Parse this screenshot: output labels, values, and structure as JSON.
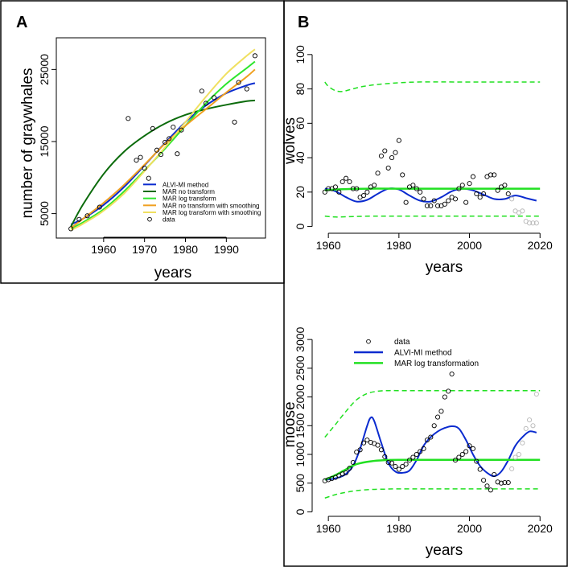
{
  "panels": {
    "A": {
      "label": "A"
    },
    "B": {
      "label": "B"
    }
  },
  "chart_data": [
    {
      "id": "graywhales",
      "type": "line",
      "panel": "A",
      "title": "",
      "xlabel": "years",
      "ylabel": "number of graywhales",
      "xlim": [
        1950,
        1998
      ],
      "ylim": [
        2500,
        28500
      ],
      "x_ticks": [
        1960,
        1970,
        1980,
        1990
      ],
      "y_ticks": [
        5000,
        15000,
        25000
      ],
      "legend_position": "bottom-right",
      "legend": [
        {
          "label": "ALVI-MI method",
          "color": "#0a2bcf",
          "style": "line"
        },
        {
          "label": "MAR no transform",
          "color": "#0b6b0b",
          "style": "line"
        },
        {
          "label": "MAR log transform",
          "color": "#2ee62e",
          "style": "line"
        },
        {
          "label": "MAR no transform with smoothing",
          "color": "#f0a020",
          "style": "line"
        },
        {
          "label": "MAR log transform with smoothing",
          "color": "#f0e060",
          "style": "line"
        },
        {
          "label": "data",
          "color": "#000000",
          "style": "point"
        }
      ],
      "series": [
        {
          "name": "ALVI-MI method",
          "color": "#0a2bcf",
          "width": 2,
          "x": [
            1952,
            1955,
            1960,
            1965,
            1970,
            1975,
            1980,
            1985,
            1990,
            1995,
            1997
          ],
          "y": [
            3500,
            4300,
            6200,
            8700,
            11700,
            14800,
            17700,
            20000,
            21700,
            22800,
            23100
          ]
        },
        {
          "name": "MAR no transform",
          "color": "#0b6b0b",
          "width": 2,
          "x": [
            1952,
            1955,
            1960,
            1965,
            1970,
            1975,
            1980,
            1985,
            1990,
            1995,
            1997
          ],
          "y": [
            3200,
            6300,
            10500,
            13600,
            15800,
            17500,
            18700,
            19500,
            20100,
            20600,
            20700
          ]
        },
        {
          "name": "MAR log transform",
          "color": "#2ee62e",
          "width": 2,
          "x": [
            1952,
            1955,
            1960,
            1965,
            1970,
            1975,
            1980,
            1985,
            1990,
            1995,
            1997
          ],
          "y": [
            2900,
            3800,
            5600,
            8100,
            11000,
            14000,
            17200,
            20300,
            23000,
            25200,
            26100
          ]
        },
        {
          "name": "MAR no transform with smoothing",
          "color": "#f0a020",
          "width": 2,
          "x": [
            1952,
            1955,
            1960,
            1965,
            1970,
            1975,
            1980,
            1985,
            1990,
            1995,
            1997
          ],
          "y": [
            3000,
            4300,
            6500,
            9000,
            11800,
            14700,
            17200,
            19500,
            21800,
            24000,
            25000
          ]
        },
        {
          "name": "MAR log transform with smoothing",
          "color": "#f0e060",
          "width": 2,
          "x": [
            1952,
            1955,
            1960,
            1965,
            1970,
            1975,
            1980,
            1985,
            1990,
            1995,
            1997
          ],
          "y": [
            2700,
            3600,
            5400,
            7800,
            10900,
            14200,
            17700,
            21200,
            24400,
            26900,
            27800
          ]
        }
      ],
      "points": {
        "name": "data",
        "x": [
          1952,
          1954,
          1956,
          1959,
          1966,
          1968,
          1969,
          1970,
          1971,
          1972,
          1973,
          1974,
          1975,
          1976,
          1977,
          1978,
          1979,
          1984,
          1985,
          1987,
          1992,
          1993,
          1995,
          1997
        ],
        "y": [
          2900,
          4200,
          4700,
          5900,
          18200,
          12400,
          12800,
          11300,
          9900,
          16800,
          13800,
          13200,
          14900,
          15400,
          17000,
          13300,
          16600,
          22000,
          20300,
          21100,
          17700,
          23200,
          22300,
          26900
        ]
      }
    },
    {
      "id": "wolves",
      "type": "line",
      "panel": "B",
      "title": "",
      "xlabel": "years",
      "ylabel": "wolves",
      "xlim": [
        1957,
        2022
      ],
      "ylim": [
        -3,
        106
      ],
      "x_ticks": [
        1960,
        1980,
        2000,
        2020
      ],
      "y_ticks": [
        0,
        20,
        40,
        60,
        80,
        100
      ],
      "series": [
        {
          "name": "ALVI-MI method",
          "color": "#0a2bcf",
          "width": 2,
          "dash": "",
          "x": [
            1959,
            1962,
            1965,
            1968,
            1971,
            1974,
            1977,
            1980,
            1983,
            1986,
            1989,
            1992,
            1995,
            1998,
            2001,
            2004,
            2007,
            2010,
            2013,
            2016,
            2019
          ],
          "y": [
            22,
            20.5,
            17,
            14.5,
            15.5,
            19,
            22,
            21.5,
            18,
            15,
            14.5,
            17,
            20.5,
            22,
            21,
            18.5,
            16,
            16,
            18,
            16.5,
            15
          ]
        },
        {
          "name": "MAR log transformation",
          "color": "#22e022",
          "width": 2.5,
          "dash": "",
          "x": [
            1959,
            1962,
            1966,
            1972,
            1980,
            2000,
            2020
          ],
          "y": [
            21,
            21.5,
            21.8,
            22,
            22,
            22,
            22
          ]
        },
        {
          "name": "MAR upper bound",
          "color": "#22e022",
          "width": 1.5,
          "dash": "6,4",
          "x": [
            1959,
            1960,
            1962,
            1964,
            1966,
            1970,
            1976,
            1985,
            2000,
            2020
          ],
          "y": [
            84,
            81.5,
            79,
            78.5,
            79.5,
            81.5,
            83,
            84,
            84,
            84
          ]
        },
        {
          "name": "MAR lower bound",
          "color": "#22e022",
          "width": 1.5,
          "dash": "6,4",
          "x": [
            1959,
            1962,
            1966,
            1972,
            1980,
            2000,
            2020
          ],
          "y": [
            6,
            5.5,
            5.7,
            6,
            6,
            6,
            6
          ]
        }
      ],
      "points": {
        "name": "data",
        "x": [
          1959,
          1960,
          1961,
          1962,
          1963,
          1964,
          1965,
          1966,
          1967,
          1968,
          1969,
          1970,
          1971,
          1972,
          1973,
          1974,
          1975,
          1976,
          1977,
          1978,
          1979,
          1980,
          1981,
          1982,
          1983,
          1984,
          1985,
          1986,
          1987,
          1988,
          1989,
          1990,
          1991,
          1992,
          1993,
          1994,
          1995,
          1996,
          1997,
          1998,
          1999,
          2000,
          2001,
          2002,
          2003,
          2004,
          2005,
          2006,
          2007,
          2008,
          2009,
          2010,
          2011
        ],
        "y": [
          20,
          22,
          22,
          23,
          20,
          26,
          28,
          26,
          22,
          22,
          17,
          18,
          20,
          23,
          24,
          31,
          41,
          44,
          34,
          40,
          43,
          50,
          30,
          14,
          23,
          24,
          22,
          20,
          16,
          12,
          12,
          15,
          12,
          12,
          13,
          15,
          17,
          16,
          22,
          24,
          14,
          25,
          29,
          19,
          17,
          19,
          29,
          30,
          30,
          21,
          23,
          24,
          19
        ]
      },
      "faint_points": {
        "name": "data recent",
        "x": [
          2012,
          2013,
          2014,
          2015,
          2016,
          2017,
          2018,
          2019
        ],
        "y": [
          16,
          9,
          8,
          9,
          3,
          2,
          2,
          2
        ]
      }
    },
    {
      "id": "moose",
      "type": "line",
      "panel": "B",
      "title": "",
      "xlabel": "years",
      "ylabel": "moose",
      "xlim": [
        1957,
        2022
      ],
      "ylim": [
        -50,
        3100
      ],
      "x_ticks": [
        1960,
        1980,
        2000,
        2020
      ],
      "y_ticks": [
        0,
        500,
        1000,
        1500,
        2000,
        2500,
        3000
      ],
      "legend_position": "top-left",
      "legend": [
        {
          "label": "data",
          "color": "#000000",
          "style": "point"
        },
        {
          "label": "ALVI-MI method",
          "color": "#0a2bcf",
          "style": "line"
        },
        {
          "label": "MAR log transformation",
          "color": "#22e022",
          "style": "line"
        }
      ],
      "series": [
        {
          "name": "ALVI-MI method",
          "color": "#0a2bcf",
          "width": 2,
          "dash": "",
          "x": [
            1959,
            1961,
            1963,
            1965,
            1967,
            1969,
            1971,
            1972,
            1973,
            1975,
            1977,
            1979,
            1981,
            1983,
            1985,
            1987,
            1989,
            1991,
            1993,
            1995,
            1997,
            1999,
            2001,
            2003,
            2005,
            2007,
            2009,
            2011,
            2013,
            2015,
            2017,
            2019
          ],
          "y": [
            560,
            570,
            600,
            660,
            800,
            1100,
            1500,
            1640,
            1580,
            1200,
            850,
            700,
            680,
            720,
            900,
            1150,
            1300,
            1400,
            1460,
            1490,
            1450,
            1250,
            1000,
            800,
            680,
            620,
            700,
            900,
            1150,
            1300,
            1400,
            1380
          ]
        },
        {
          "name": "MAR log transformation",
          "color": "#22e022",
          "width": 2.5,
          "dash": "",
          "x": [
            1959,
            1962,
            1965,
            1968,
            1972,
            1976,
            1980,
            1990,
            2000,
            2020
          ],
          "y": [
            560,
            640,
            740,
            830,
            880,
            900,
            905,
            905,
            905,
            905
          ]
        },
        {
          "name": "MAR upper bound",
          "color": "#22e022",
          "width": 1.5,
          "dash": "6,4",
          "x": [
            1959,
            1962,
            1965,
            1968,
            1971,
            1974,
            1977,
            1980,
            1990,
            2000,
            2020
          ],
          "y": [
            1300,
            1520,
            1750,
            1950,
            2060,
            2100,
            2110,
            2110,
            2110,
            2110,
            2110
          ]
        },
        {
          "name": "MAR lower bound",
          "color": "#22e022",
          "width": 1.5,
          "dash": "6,4",
          "x": [
            1959,
            1962,
            1965,
            1968,
            1972,
            1976,
            1980,
            2000,
            2020
          ],
          "y": [
            240,
            300,
            340,
            370,
            390,
            395,
            400,
            400,
            400
          ]
        }
      ],
      "points": {
        "name": "data",
        "x": [
          1959,
          1960,
          1961,
          1962,
          1963,
          1964,
          1965,
          1966,
          1967,
          1968,
          1969,
          1970,
          1971,
          1972,
          1973,
          1974,
          1975,
          1976,
          1977,
          1978,
          1979,
          1980,
          1981,
          1982,
          1983,
          1984,
          1985,
          1986,
          1987,
          1988,
          1989,
          1990,
          1991,
          1992,
          1993,
          1994,
          1995,
          1996,
          1997,
          1998,
          1999,
          2000,
          2001,
          2002,
          2003,
          2004,
          2005,
          2006,
          2007,
          2008,
          2009,
          2010,
          2011
        ],
        "y": [
          540,
          560,
          580,
          600,
          630,
          660,
          680,
          760,
          860,
          1040,
          1080,
          1200,
          1250,
          1210,
          1190,
          1160,
          1080,
          960,
          860,
          850,
          790,
          740,
          790,
          830,
          900,
          950,
          1000,
          1050,
          1100,
          1250,
          1300,
          1500,
          1650,
          1750,
          2000,
          2100,
          2400,
          900,
          950,
          1000,
          1050,
          1150,
          1100,
          880,
          740,
          550,
          450,
          380,
          650,
          520,
          500,
          510,
          510
        ]
      },
      "faint_points": {
        "name": "data recent",
        "x": [
          2012,
          2013,
          2014,
          2015,
          2016,
          2017,
          2018,
          2019
        ],
        "y": [
          750,
          950,
          1000,
          1200,
          1450,
          1600,
          1500,
          2050
        ]
      }
    }
  ]
}
